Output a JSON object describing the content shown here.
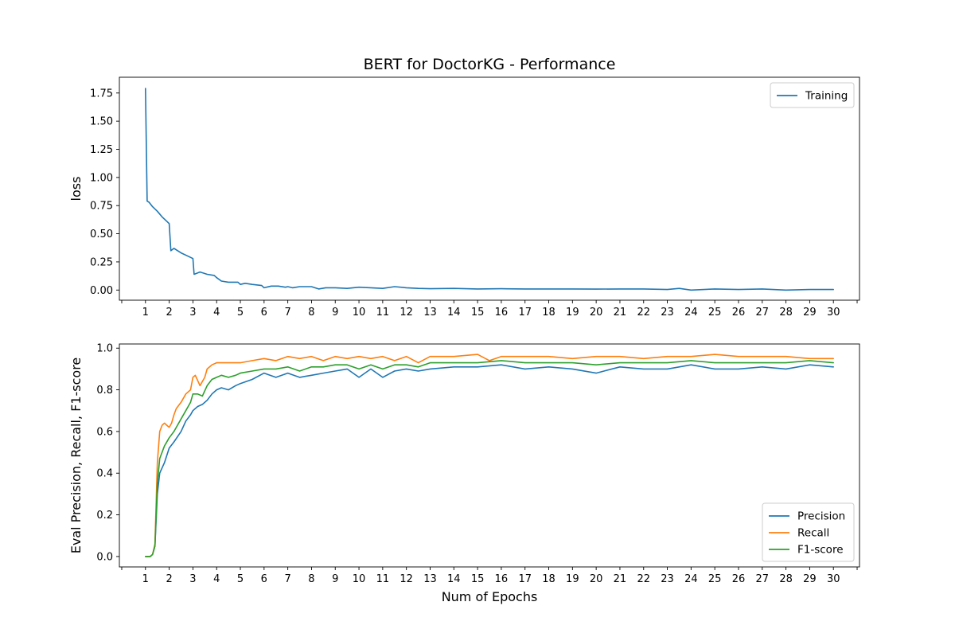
{
  "figure": {
    "title": "BERT for DoctorKG - Performance"
  },
  "chart_data": [
    {
      "type": "line",
      "title": "BERT for DoctorKG - Performance",
      "xlabel": "",
      "ylabel": "loss",
      "xlim": [
        -0.1,
        31.1
      ],
      "ylim": [
        -0.09,
        1.89
      ],
      "xticks": [
        1,
        2,
        3,
        4,
        5,
        6,
        7,
        8,
        9,
        10,
        11,
        12,
        13,
        14,
        15,
        16,
        17,
        18,
        19,
        20,
        21,
        22,
        23,
        24,
        25,
        26,
        27,
        28,
        29,
        30
      ],
      "yticks": [
        0.0,
        0.25,
        0.5,
        0.75,
        1.0,
        1.25,
        1.5,
        1.75
      ],
      "ytick_labels": [
        "0.00",
        "0.25",
        "0.50",
        "0.75",
        "1.00",
        "1.25",
        "1.50",
        "1.75"
      ],
      "grid": false,
      "legend_position": "upper-right",
      "series": [
        {
          "name": "Training",
          "color": "#1f77b4",
          "x": [
            1.0,
            1.07,
            1.15,
            1.3,
            1.5,
            1.7,
            1.85,
            2.0,
            2.07,
            2.2,
            2.5,
            2.8,
            3.0,
            3.05,
            3.3,
            3.6,
            3.9,
            4.0,
            4.2,
            4.5,
            4.9,
            5.0,
            5.2,
            5.5,
            5.9,
            6.0,
            6.3,
            6.6,
            6.9,
            7.0,
            7.2,
            7.5,
            8.0,
            8.3,
            8.6,
            9.0,
            9.5,
            10.0,
            10.5,
            11.0,
            11.5,
            12.0,
            12.5,
            13.0,
            14.0,
            15.0,
            16.0,
            17.0,
            18.0,
            19.0,
            20.0,
            21.0,
            22.0,
            23.0,
            23.5,
            24.0,
            25.0,
            26.0,
            27.0,
            28.0,
            29.0,
            30.0
          ],
          "y": [
            1.79,
            0.79,
            0.78,
            0.74,
            0.7,
            0.65,
            0.62,
            0.59,
            0.35,
            0.37,
            0.33,
            0.3,
            0.28,
            0.14,
            0.16,
            0.14,
            0.13,
            0.11,
            0.08,
            0.07,
            0.07,
            0.05,
            0.06,
            0.05,
            0.04,
            0.02,
            0.035,
            0.035,
            0.025,
            0.03,
            0.02,
            0.03,
            0.03,
            0.01,
            0.02,
            0.02,
            0.015,
            0.025,
            0.02,
            0.015,
            0.03,
            0.02,
            0.015,
            0.012,
            0.015,
            0.01,
            0.012,
            0.01,
            0.01,
            0.01,
            0.008,
            0.01,
            0.01,
            0.005,
            0.015,
            0.0,
            0.01,
            0.005,
            0.01,
            0.0,
            0.005,
            0.005
          ]
        }
      ]
    },
    {
      "type": "line",
      "title": "",
      "xlabel": "Num of Epochs",
      "ylabel": "Eval Precision, Recall, F1-score",
      "xlim": [
        -0.1,
        31.1
      ],
      "ylim": [
        -0.05,
        1.02
      ],
      "xticks": [
        1,
        2,
        3,
        4,
        5,
        6,
        7,
        8,
        9,
        10,
        11,
        12,
        13,
        14,
        15,
        16,
        17,
        18,
        19,
        20,
        21,
        22,
        23,
        24,
        25,
        26,
        27,
        28,
        29,
        30
      ],
      "yticks": [
        0.0,
        0.2,
        0.4,
        0.6,
        0.8,
        1.0
      ],
      "ytick_labels": [
        "0.0",
        "0.2",
        "0.4",
        "0.6",
        "0.8",
        "1.0"
      ],
      "grid": false,
      "legend_position": "lower-right",
      "series": [
        {
          "name": "Precision",
          "color": "#1f77b4",
          "x": [
            1.0,
            1.2,
            1.3,
            1.4,
            1.5,
            1.6,
            1.8,
            2.0,
            2.2,
            2.5,
            2.7,
            2.9,
            3.0,
            3.2,
            3.4,
            3.6,
            3.8,
            4.0,
            4.2,
            4.5,
            4.8,
            5.0,
            5.5,
            6.0,
            6.5,
            7.0,
            7.5,
            8.0,
            8.5,
            9.0,
            9.5,
            10.0,
            10.5,
            11.0,
            11.5,
            12.0,
            12.5,
            13.0,
            14.0,
            15.0,
            16.0,
            17.0,
            18.0,
            19.0,
            20.0,
            21.0,
            22.0,
            23.0,
            24.0,
            25.0,
            26.0,
            27.0,
            28.0,
            29.0,
            30.0
          ],
          "y": [
            0.0,
            0.0,
            0.01,
            0.05,
            0.3,
            0.4,
            0.45,
            0.52,
            0.55,
            0.6,
            0.65,
            0.68,
            0.7,
            0.72,
            0.73,
            0.75,
            0.78,
            0.8,
            0.81,
            0.8,
            0.82,
            0.83,
            0.85,
            0.88,
            0.86,
            0.88,
            0.86,
            0.87,
            0.88,
            0.89,
            0.9,
            0.86,
            0.9,
            0.86,
            0.89,
            0.9,
            0.89,
            0.9,
            0.91,
            0.91,
            0.92,
            0.9,
            0.91,
            0.9,
            0.88,
            0.91,
            0.9,
            0.9,
            0.92,
            0.9,
            0.9,
            0.91,
            0.9,
            0.92,
            0.91
          ]
        },
        {
          "name": "Recall",
          "color": "#ff7f0e",
          "x": [
            1.0,
            1.2,
            1.3,
            1.4,
            1.5,
            1.6,
            1.7,
            1.8,
            1.9,
            2.0,
            2.1,
            2.2,
            2.3,
            2.5,
            2.7,
            2.9,
            3.0,
            3.1,
            3.3,
            3.5,
            3.6,
            3.8,
            4.0,
            4.3,
            4.5,
            5.0,
            5.5,
            6.0,
            6.5,
            7.0,
            7.5,
            8.0,
            8.5,
            9.0,
            9.5,
            10.0,
            10.5,
            11.0,
            11.5,
            12.0,
            12.5,
            13.0,
            14.0,
            15.0,
            15.5,
            16.0,
            17.0,
            18.0,
            19.0,
            20.0,
            21.0,
            22.0,
            23.0,
            24.0,
            25.0,
            26.0,
            27.0,
            28.0,
            29.0,
            30.0
          ],
          "y": [
            0.0,
            0.0,
            0.01,
            0.06,
            0.45,
            0.6,
            0.63,
            0.64,
            0.63,
            0.62,
            0.64,
            0.68,
            0.71,
            0.74,
            0.78,
            0.8,
            0.86,
            0.87,
            0.82,
            0.86,
            0.9,
            0.92,
            0.93,
            0.93,
            0.93,
            0.93,
            0.94,
            0.95,
            0.94,
            0.96,
            0.95,
            0.96,
            0.94,
            0.96,
            0.95,
            0.96,
            0.95,
            0.96,
            0.94,
            0.96,
            0.93,
            0.96,
            0.96,
            0.97,
            0.94,
            0.96,
            0.96,
            0.96,
            0.95,
            0.96,
            0.96,
            0.95,
            0.96,
            0.96,
            0.97,
            0.96,
            0.96,
            0.96,
            0.95,
            0.95
          ]
        },
        {
          "name": "F1-score",
          "color": "#2ca02c",
          "x": [
            1.0,
            1.2,
            1.3,
            1.4,
            1.5,
            1.6,
            1.8,
            2.0,
            2.2,
            2.5,
            2.7,
            2.9,
            3.0,
            3.2,
            3.4,
            3.6,
            3.8,
            4.0,
            4.2,
            4.5,
            4.8,
            5.0,
            5.5,
            6.0,
            6.5,
            7.0,
            7.5,
            8.0,
            8.5,
            9.0,
            9.5,
            10.0,
            10.5,
            11.0,
            11.5,
            12.0,
            12.5,
            13.0,
            14.0,
            15.0,
            16.0,
            17.0,
            18.0,
            19.0,
            20.0,
            21.0,
            22.0,
            23.0,
            24.0,
            25.0,
            26.0,
            27.0,
            28.0,
            29.0,
            30.0
          ],
          "y": [
            0.0,
            0.0,
            0.01,
            0.05,
            0.35,
            0.47,
            0.53,
            0.57,
            0.6,
            0.66,
            0.7,
            0.74,
            0.78,
            0.78,
            0.77,
            0.82,
            0.85,
            0.86,
            0.87,
            0.86,
            0.87,
            0.88,
            0.89,
            0.9,
            0.9,
            0.91,
            0.89,
            0.91,
            0.91,
            0.92,
            0.92,
            0.9,
            0.92,
            0.9,
            0.92,
            0.92,
            0.91,
            0.93,
            0.93,
            0.93,
            0.94,
            0.93,
            0.93,
            0.93,
            0.92,
            0.93,
            0.93,
            0.93,
            0.94,
            0.93,
            0.93,
            0.93,
            0.93,
            0.94,
            0.93
          ]
        }
      ]
    }
  ]
}
